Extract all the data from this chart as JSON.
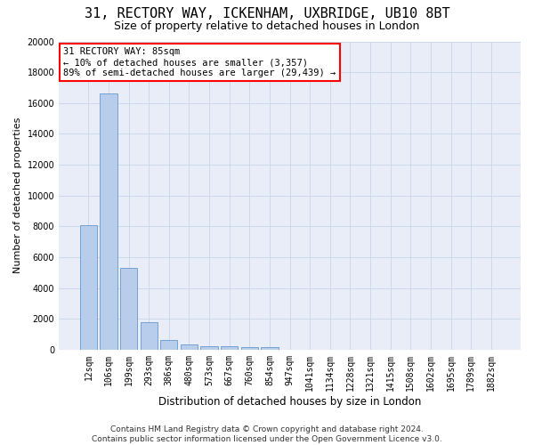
{
  "title1": "31, RECTORY WAY, ICKENHAM, UXBRIDGE, UB10 8BT",
  "title2": "Size of property relative to detached houses in London",
  "xlabel": "Distribution of detached houses by size in London",
  "ylabel": "Number of detached properties",
  "bar_labels": [
    "12sqm",
    "106sqm",
    "199sqm",
    "293sqm",
    "386sqm",
    "480sqm",
    "573sqm",
    "667sqm",
    "760sqm",
    "854sqm",
    "947sqm",
    "1041sqm",
    "1134sqm",
    "1228sqm",
    "1321sqm",
    "1415sqm",
    "1508sqm",
    "1602sqm",
    "1695sqm",
    "1789sqm",
    "1882sqm"
  ],
  "bar_values": [
    8100,
    16600,
    5300,
    1800,
    650,
    350,
    250,
    200,
    170,
    150,
    0,
    0,
    0,
    0,
    0,
    0,
    0,
    0,
    0,
    0,
    0
  ],
  "bar_color": "#b8ccec",
  "bar_edge_color": "#6699cc",
  "grid_color": "#c8d4e8",
  "bg_color": "#e8edf8",
  "annotation_text": "31 RECTORY WAY: 85sqm\n← 10% of detached houses are smaller (3,357)\n89% of semi-detached houses are larger (29,439) →",
  "annotation_box_color": "white",
  "annotation_box_edge_color": "red",
  "ylim": [
    0,
    20000
  ],
  "yticks": [
    0,
    2000,
    4000,
    6000,
    8000,
    10000,
    12000,
    14000,
    16000,
    18000,
    20000
  ],
  "footer_text": "Contains HM Land Registry data © Crown copyright and database right 2024.\nContains public sector information licensed under the Open Government Licence v3.0.",
  "title1_fontsize": 11,
  "title2_fontsize": 9,
  "xlabel_fontsize": 8.5,
  "ylabel_fontsize": 8,
  "tick_fontsize": 7,
  "annotation_fontsize": 7.5,
  "footer_fontsize": 6.5
}
